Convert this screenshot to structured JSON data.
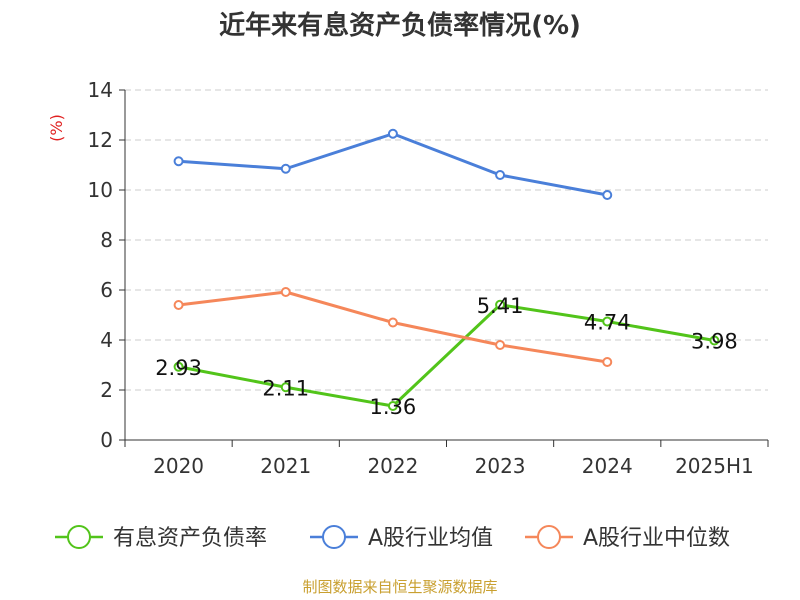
{
  "chart_data": {
    "type": "line",
    "title": "近年来有息资产负债率情况(%)",
    "ylabel": "(%)",
    "xlabel": "",
    "ylim": [
      0,
      14
    ],
    "yticks": [
      0,
      2,
      4,
      6,
      8,
      10,
      12,
      14
    ],
    "categories": [
      "2020",
      "2021",
      "2022",
      "2023",
      "2024",
      "2025H1"
    ],
    "grid": true,
    "legend_position": "bottom",
    "series": [
      {
        "name": "有息资产负债率",
        "color": "#52c41a",
        "values": [
          2.93,
          2.11,
          1.36,
          5.41,
          4.74,
          3.98
        ],
        "labels": [
          "2.93",
          "2.11",
          "1.36",
          "5.41",
          "4.74",
          "3.98"
        ],
        "show_labels": true
      },
      {
        "name": "A股行业均值",
        "color": "#4a7fd9",
        "values": [
          11.15,
          10.85,
          12.25,
          10.6,
          9.8,
          null
        ],
        "show_labels": false
      },
      {
        "name": "A股行业中位数",
        "color": "#f5875a",
        "values": [
          5.4,
          5.92,
          4.7,
          3.8,
          3.12,
          null
        ],
        "show_labels": false
      }
    ]
  },
  "footer": {
    "source": "制图数据来自恒生聚源数据库"
  }
}
